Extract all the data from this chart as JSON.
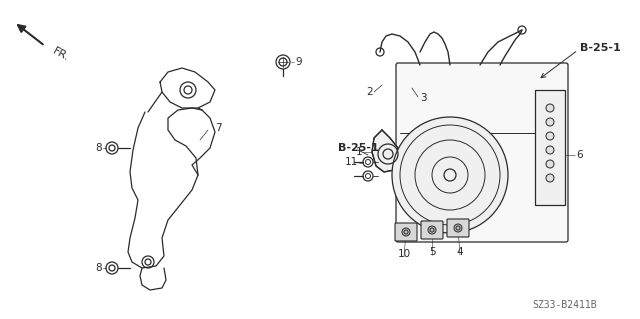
{
  "bg_color": "#ffffff",
  "line_color": "#2a2a2a",
  "part_code": "SZ33-B2411B",
  "b25_label": "B-25-1",
  "fr_label": "FR."
}
